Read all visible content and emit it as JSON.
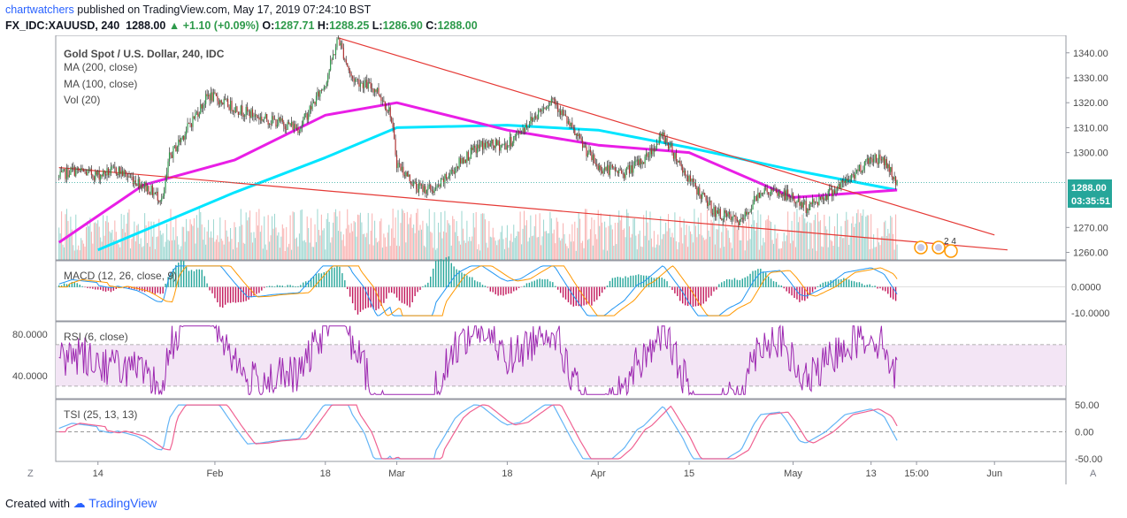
{
  "header": {
    "author": "chartwatchers",
    "published_text": "published on TradingView.com, May 17, 2019 07:24:10 BST",
    "symbol": "FX_IDC:XAUUSD, 240",
    "last": "1288.00",
    "change": "+1.10 (+0.09%)",
    "o_label": "O:",
    "o_val": "1287.71",
    "h_label": "H:",
    "h_val": "1288.25",
    "l_label": "L:",
    "l_val": "1286.90",
    "c_label": "C:",
    "c_val": "1288.00"
  },
  "legend": {
    "title": "Gold Spot / U.S. Dollar, 240, IDC",
    "ma200": "MA (200, close)",
    "ma100": "MA (100, close)",
    "vol": "Vol (20)"
  },
  "panes": {
    "macd_label": "MACD (12, 26, close, 9)",
    "rsi_label": "RSI (6, close)",
    "tsi_label": "TSI (25, 13, 13)"
  },
  "price_badge": {
    "price": "1288.00",
    "countdown": "03:35:51"
  },
  "event_marker": {
    "count": "2 4"
  },
  "buttons": {
    "left": "Z",
    "right": "A"
  },
  "footer": {
    "created_with": "Created with",
    "brand": "TradingView"
  },
  "colors": {
    "up": "#26a69a",
    "down": "#ef5350",
    "ma200": "#00e5ff",
    "ma100": "#e91ee6",
    "trendline": "#e53935",
    "macd": "#2196f3",
    "signal": "#ff9800",
    "rsi": "#9c27b0",
    "rsi_band": "#f3e5f5",
    "tsi": "#64b5f6",
    "tsi_signal": "#f06292",
    "badge": "#26a69a"
  },
  "chart_data": [
    {
      "type": "candlestick",
      "title": "Gold Spot / U.S. Dollar, 240, IDC",
      "x_ticks": [
        "14",
        "Feb",
        "18",
        "Mar",
        "18",
        "Apr",
        "15",
        "May",
        "13",
        "15:00",
        "Jun"
      ],
      "y_ticks": [
        "1340.00",
        "1330.00",
        "1320.00",
        "1310.00",
        "1300.00",
        "1270.00",
        "1260.00"
      ],
      "ylim": [
        1260,
        1345
      ],
      "close_path": [
        {
          "date": "Jan 8",
          "price": 1290
        },
        {
          "date": "Jan 10",
          "price": 1293
        },
        {
          "date": "Jan 14",
          "price": 1291
        },
        {
          "date": "Jan 17",
          "price": 1293
        },
        {
          "date": "Jan 21",
          "price": 1287
        },
        {
          "date": "Jan 24",
          "price": 1281
        },
        {
          "date": "Jan 25",
          "price": 1298
        },
        {
          "date": "Jan 29",
          "price": 1315
        },
        {
          "date": "Jan 31",
          "price": 1323
        },
        {
          "date": "Feb 4",
          "price": 1318
        },
        {
          "date": "Feb 8",
          "price": 1314
        },
        {
          "date": "Feb 14",
          "price": 1310
        },
        {
          "date": "Feb 18",
          "price": 1328
        },
        {
          "date": "Feb 20",
          "price": 1346
        },
        {
          "date": "Feb 22",
          "price": 1330
        },
        {
          "date": "Feb 26",
          "price": 1325
        },
        {
          "date": "Feb 28",
          "price": 1316
        },
        {
          "date": "Mar 1",
          "price": 1296
        },
        {
          "date": "Mar 4",
          "price": 1286
        },
        {
          "date": "Mar 7",
          "price": 1285
        },
        {
          "date": "Mar 11",
          "price": 1297
        },
        {
          "date": "Mar 14",
          "price": 1303
        },
        {
          "date": "Mar 18",
          "price": 1303
        },
        {
          "date": "Mar 22",
          "price": 1314
        },
        {
          "date": "Mar 25",
          "price": 1322
        },
        {
          "date": "Mar 28",
          "price": 1309
        },
        {
          "date": "Apr 1",
          "price": 1294
        },
        {
          "date": "Apr 5",
          "price": 1292
        },
        {
          "date": "Apr 8",
          "price": 1297
        },
        {
          "date": "Apr 11",
          "price": 1307
        },
        {
          "date": "Apr 15",
          "price": 1289
        },
        {
          "date": "Apr 19",
          "price": 1276
        },
        {
          "date": "Apr 23",
          "price": 1272
        },
        {
          "date": "Apr 26",
          "price": 1285
        },
        {
          "date": "Apr 30",
          "price": 1283
        },
        {
          "date": "May 3",
          "price": 1278
        },
        {
          "date": "May 6",
          "price": 1283
        },
        {
          "date": "May 9",
          "price": 1288
        },
        {
          "date": "May 13",
          "price": 1298
        },
        {
          "date": "May 15",
          "price": 1297
        },
        {
          "date": "May 17",
          "price": 1288
        }
      ],
      "series": [
        {
          "name": "MA (200, close)",
          "values": [
            {
              "date": "Jan 14",
              "price": 1261
            },
            {
              "date": "Feb 4",
              "price": 1284
            },
            {
              "date": "Feb 18",
              "price": 1298
            },
            {
              "date": "Mar 1",
              "price": 1310
            },
            {
              "date": "Mar 18",
              "price": 1311
            },
            {
              "date": "Apr 1",
              "price": 1309
            },
            {
              "date": "Apr 15",
              "price": 1302
            },
            {
              "date": "May 1",
              "price": 1293
            },
            {
              "date": "May 17",
              "price": 1285
            }
          ]
        },
        {
          "name": "MA (100, close)",
          "values": [
            {
              "date": "Jan 8",
              "price": 1264
            },
            {
              "date": "Jan 21",
              "price": 1287
            },
            {
              "date": "Feb 4",
              "price": 1297
            },
            {
              "date": "Feb 18",
              "price": 1315
            },
            {
              "date": "Mar 1",
              "price": 1320
            },
            {
              "date": "Mar 18",
              "price": 1309
            },
            {
              "date": "Apr 1",
              "price": 1303
            },
            {
              "date": "Apr 15",
              "price": 1300
            },
            {
              "date": "May 1",
              "price": 1282
            },
            {
              "date": "May 17",
              "price": 1285
            }
          ]
        }
      ],
      "trendlines": [
        {
          "from": {
            "date": "Feb 20",
            "price": 1346
          },
          "to": {
            "date": "Jun 1",
            "price": 1267
          }
        },
        {
          "from": {
            "date": "Jan 8",
            "price": 1294
          },
          "to": {
            "date": "Jun 3",
            "price": 1261
          }
        }
      ],
      "current_price": 1288.0
    },
    {
      "type": "line",
      "title": "MACD (12, 26, close, 9)",
      "y_ticks": [
        "0.0000",
        "-10.0000"
      ],
      "ylim": [
        -13,
        10
      ]
    },
    {
      "type": "line",
      "title": "RSI (6, close)",
      "y_ticks": [
        "80.0000",
        "40.0000"
      ],
      "ylim": [
        18,
        92
      ],
      "bands": [
        30,
        70
      ]
    },
    {
      "type": "line",
      "title": "TSI (25, 13, 13)",
      "y_ticks": [
        "50.00",
        "0.00",
        "-50.00"
      ],
      "ylim": [
        -55,
        60
      ]
    }
  ]
}
